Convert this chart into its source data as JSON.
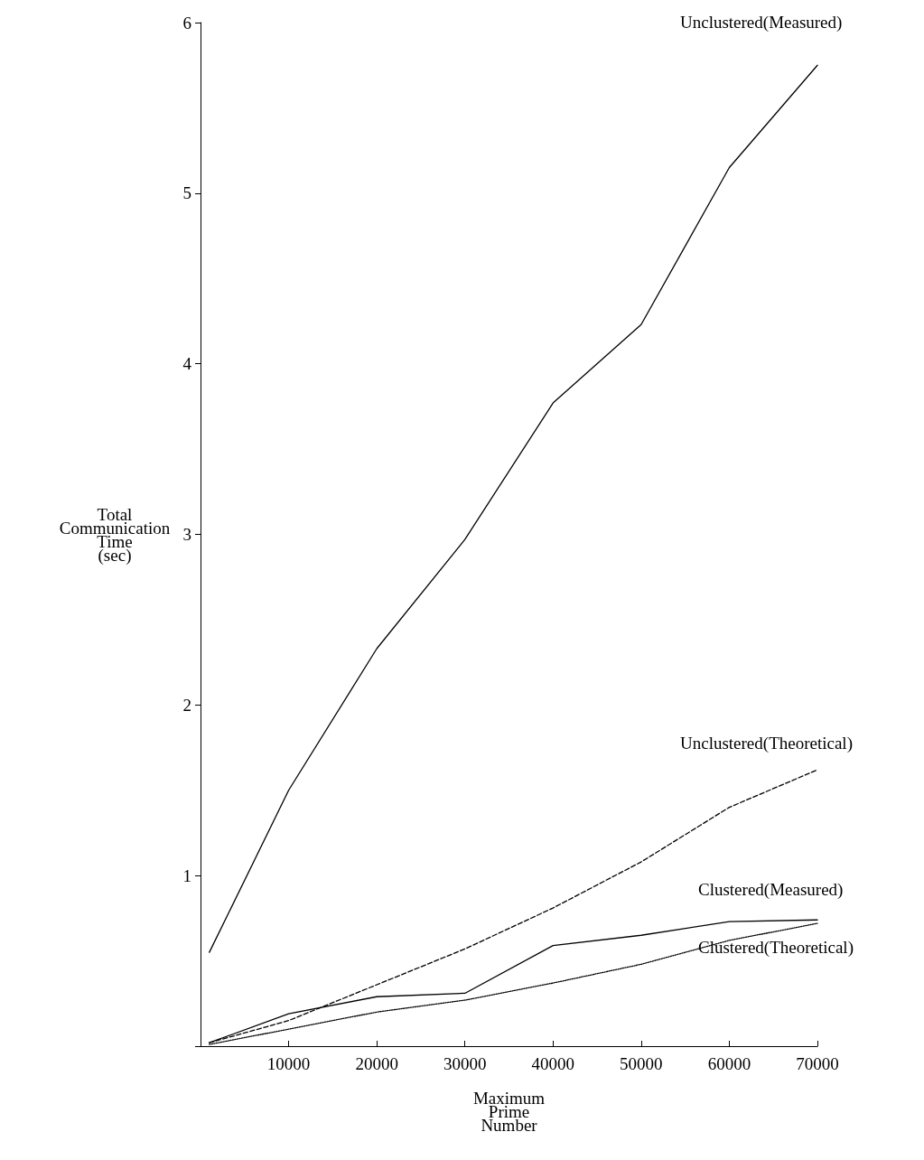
{
  "chart_data": {
    "type": "line",
    "xlabel": "Maximum\nPrime\nNumber",
    "ylabel": "Total\nCommunication\nTime\n(sec)",
    "x": [
      1000,
      10000,
      20000,
      30000,
      40000,
      50000,
      60000,
      70000
    ],
    "xlim": [
      0,
      70000
    ],
    "xticks": [
      10000,
      20000,
      30000,
      40000,
      50000,
      60000,
      70000
    ],
    "ylim": [
      0,
      6
    ],
    "yticks": [
      {
        "value": 0,
        "label": null
      },
      1,
      2,
      3,
      4,
      5,
      6
    ],
    "grid": false,
    "legend": false,
    "marker": "none",
    "series": [
      {
        "name": "Unclustered(Measured)",
        "color": "#000000",
        "line_style": "solid",
        "values": [
          0.55,
          1.5,
          2.33,
          2.97,
          3.77,
          4.23,
          5.15,
          5.75
        ]
      },
      {
        "name": "Unclustered(Theoretical)",
        "color": "#000000",
        "line_style": "dashed",
        "values": [
          0.02,
          0.15,
          0.36,
          0.57,
          0.81,
          1.08,
          1.4,
          1.62
        ]
      },
      {
        "name": "Clustered(Measured)",
        "color": "#000000",
        "line_style": "solid",
        "values": [
          0.02,
          0.19,
          0.29,
          0.31,
          0.59,
          0.65,
          0.73,
          0.74
        ]
      },
      {
        "name": "Clustered(Theoretical)",
        "color": "#000000",
        "line_style": "dotted",
        "values": [
          0.01,
          0.1,
          0.2,
          0.27,
          0.37,
          0.48,
          0.62,
          0.72
        ]
      }
    ]
  }
}
